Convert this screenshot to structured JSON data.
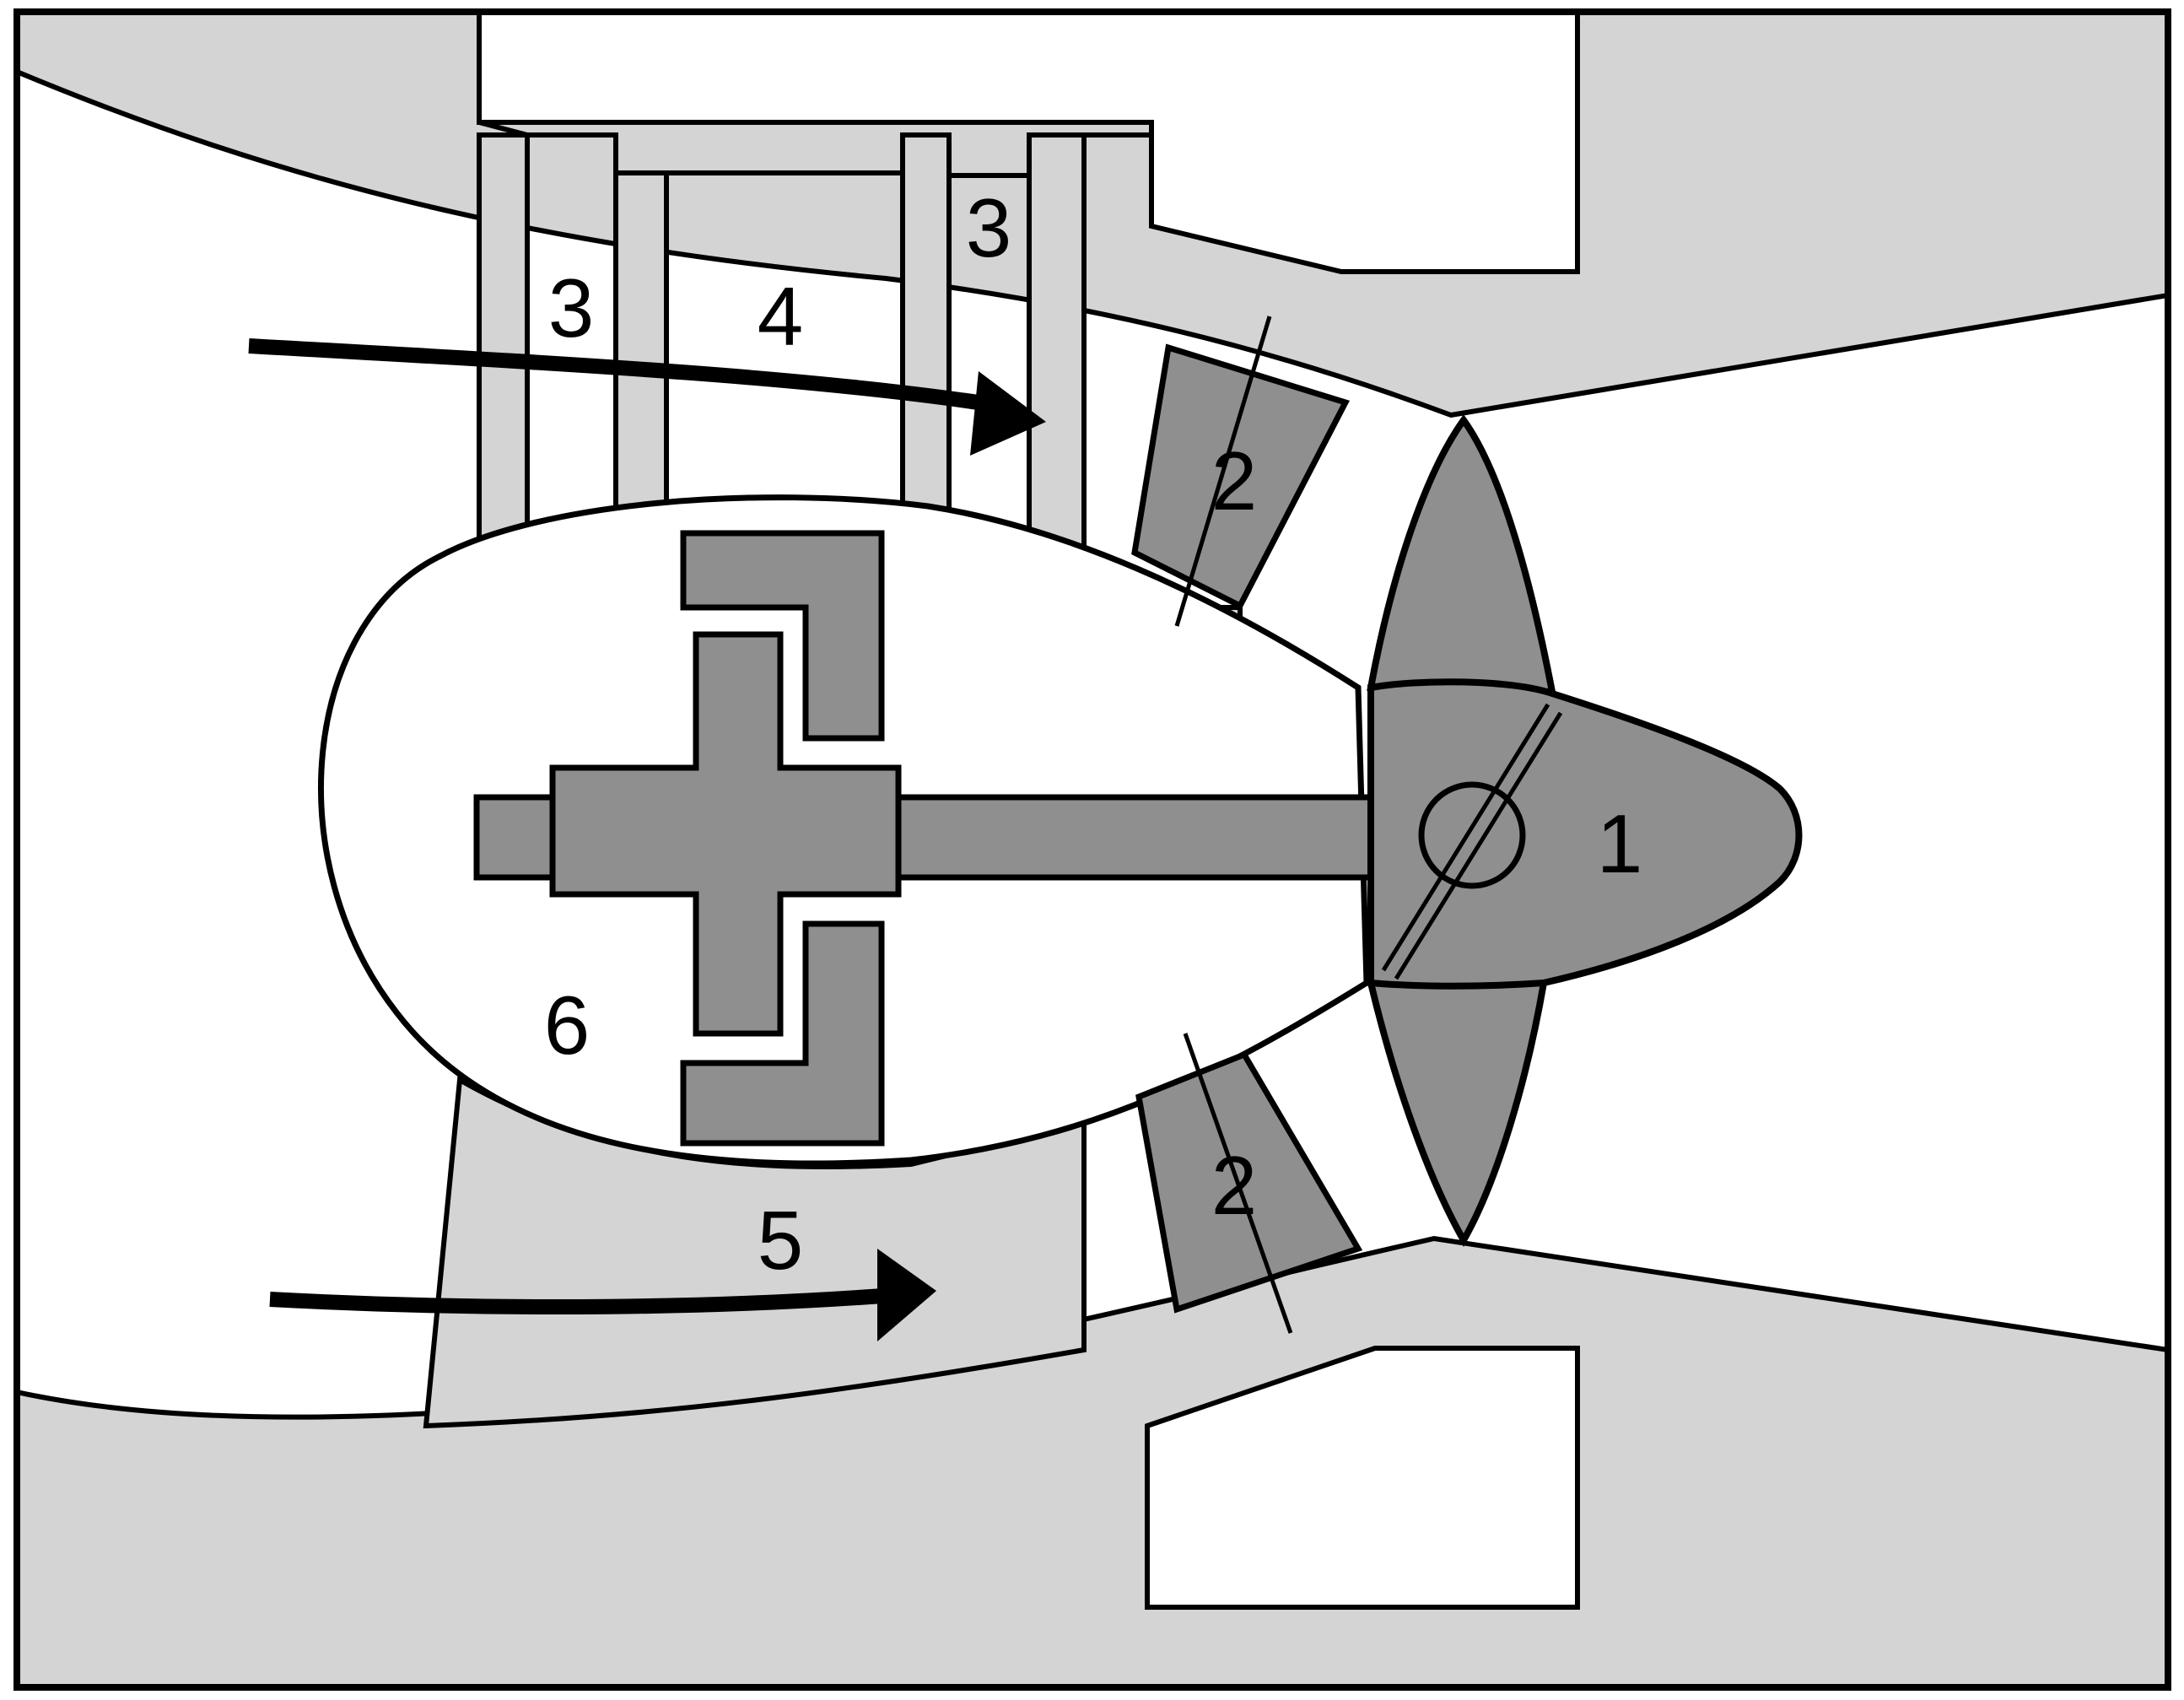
{
  "labels": {
    "part_1": "1",
    "part_2_top": "2",
    "part_2_bottom": "2",
    "part_3_left": "3",
    "part_3_right": "3",
    "part_4": "4",
    "part_5": "5",
    "part_6": "6"
  },
  "colors": {
    "light_region": "#d4d4d4",
    "dark_part": "#8f8f8f",
    "white": "#ffffff",
    "outline": "#000000"
  }
}
